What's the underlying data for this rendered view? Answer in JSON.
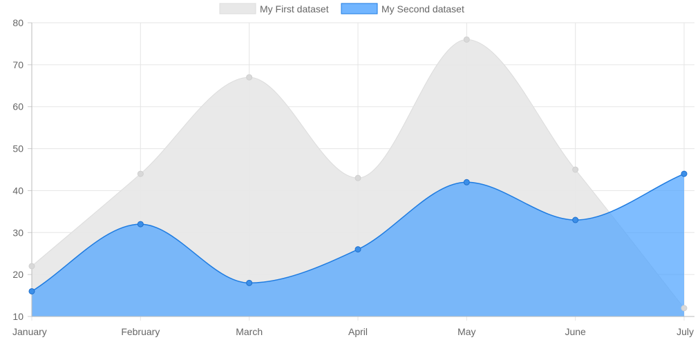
{
  "chart_data": {
    "type": "area",
    "categories": [
      "January",
      "February",
      "March",
      "April",
      "May",
      "June",
      "July"
    ],
    "series": [
      {
        "name": "My First dataset",
        "values": [
          22,
          44,
          67,
          43,
          76,
          45,
          12
        ],
        "fill": "#e8e8e8",
        "stroke": "#dcdcdc",
        "point_color": "#d9d9d9"
      },
      {
        "name": "My Second dataset",
        "values": [
          16,
          32,
          18,
          26,
          42,
          33,
          44
        ],
        "fill": "#4da3ff",
        "stroke": "#1e7be0",
        "point_color": "#3c8fe8"
      }
    ],
    "ylim": [
      10,
      80
    ],
    "yticks": [
      10,
      20,
      30,
      40,
      50,
      60,
      70,
      80
    ],
    "grid": true,
    "legend_position": "top",
    "smooth": true
  }
}
